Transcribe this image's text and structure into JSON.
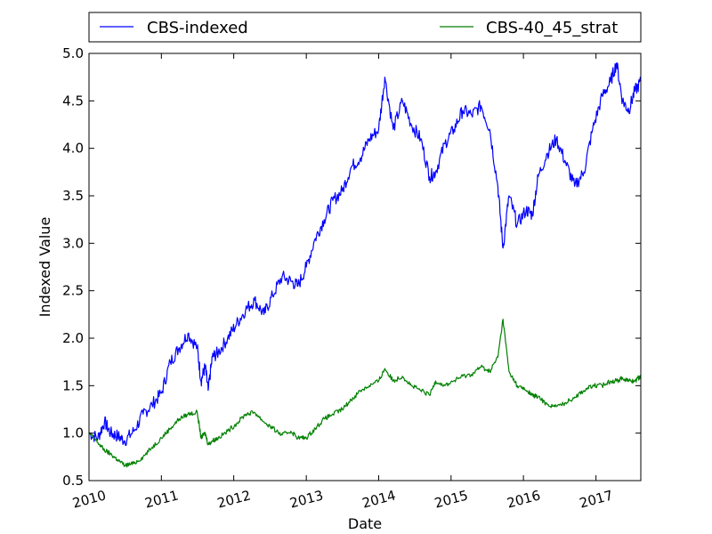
{
  "chart_data": {
    "type": "line",
    "xlabel": "Date",
    "ylabel": "Indexed Value",
    "ylim": [
      0.5,
      5.0
    ],
    "xlim": [
      "2010-01-01",
      "2017-08-15"
    ],
    "yticks": [
      "0.5",
      "1.0",
      "1.5",
      "2.0",
      "2.5",
      "3.0",
      "3.5",
      "4.0",
      "4.5",
      "5.0"
    ],
    "xticks": [
      "2010",
      "2011",
      "2012",
      "2013",
      "2014",
      "2015",
      "2016",
      "2017"
    ],
    "legend_placement": "top, above plot, two columns",
    "grid": false,
    "series": [
      {
        "name": "CBS-indexed",
        "color": "#0000ff",
        "x": [
          "2010-01-01",
          "2010-02-15",
          "2010-03-20",
          "2010-04-20",
          "2010-05-25",
          "2010-06-30",
          "2010-08-15",
          "2010-10-01",
          "2010-11-15",
          "2011-01-01",
          "2011-02-15",
          "2011-04-01",
          "2011-05-15",
          "2011-07-01",
          "2011-07-20",
          "2011-08-10",
          "2011-08-25",
          "2011-09-15",
          "2011-10-15",
          "2011-12-01",
          "2012-01-15",
          "2012-03-01",
          "2012-04-15",
          "2012-06-01",
          "2012-07-15",
          "2012-09-01",
          "2012-10-15",
          "2012-11-20",
          "2013-01-01",
          "2013-02-15",
          "2013-04-01",
          "2013-05-15",
          "2013-07-01",
          "2013-08-15",
          "2013-10-01",
          "2013-11-15",
          "2014-01-01",
          "2014-02-01",
          "2014-03-15",
          "2014-05-01",
          "2014-06-15",
          "2014-08-01",
          "2014-09-15",
          "2014-10-15",
          "2014-12-01",
          "2015-01-15",
          "2015-03-01",
          "2015-04-15",
          "2015-06-01",
          "2015-07-15",
          "2015-08-25",
          "2015-09-20",
          "2015-10-20",
          "2015-12-01",
          "2016-01-15",
          "2016-02-15",
          "2016-03-15",
          "2016-05-01",
          "2016-06-15",
          "2016-08-01",
          "2016-09-15",
          "2016-11-01",
          "2016-12-15",
          "2017-02-01",
          "2017-03-15",
          "2017-04-15",
          "2017-05-15",
          "2017-06-15",
          "2017-07-15",
          "2017-08-15"
        ],
        "y": [
          1.0,
          0.95,
          1.12,
          1.0,
          0.97,
          0.92,
          1.02,
          1.2,
          1.3,
          1.42,
          1.75,
          1.9,
          2.05,
          1.9,
          1.55,
          1.7,
          1.45,
          1.8,
          1.85,
          2.0,
          2.15,
          2.3,
          2.4,
          2.25,
          2.45,
          2.65,
          2.6,
          2.55,
          2.75,
          3.05,
          3.25,
          3.45,
          3.55,
          3.8,
          3.9,
          4.1,
          4.2,
          4.75,
          4.2,
          4.5,
          4.25,
          4.1,
          3.7,
          3.75,
          4.05,
          4.2,
          4.4,
          4.35,
          4.45,
          4.2,
          3.6,
          2.95,
          3.5,
          3.2,
          3.35,
          3.3,
          3.7,
          3.95,
          4.1,
          3.85,
          3.6,
          3.75,
          4.2,
          4.55,
          4.7,
          4.9,
          4.5,
          4.4,
          4.6,
          4.7
        ]
      },
      {
        "name": "CBS-40_45_strat",
        "color": "#008000",
        "x": [
          "2010-01-01",
          "2010-02-15",
          "2010-03-20",
          "2010-04-20",
          "2010-05-25",
          "2010-06-30",
          "2010-08-15",
          "2010-10-01",
          "2010-11-15",
          "2011-01-01",
          "2011-02-15",
          "2011-04-01",
          "2011-05-15",
          "2011-07-01",
          "2011-07-20",
          "2011-08-10",
          "2011-08-25",
          "2011-09-15",
          "2011-10-15",
          "2011-12-01",
          "2012-01-15",
          "2012-03-01",
          "2012-04-15",
          "2012-06-01",
          "2012-07-15",
          "2012-09-01",
          "2012-10-15",
          "2012-11-20",
          "2013-01-01",
          "2013-02-15",
          "2013-04-01",
          "2013-05-15",
          "2013-07-01",
          "2013-08-15",
          "2013-10-01",
          "2013-11-15",
          "2014-01-01",
          "2014-02-01",
          "2014-03-15",
          "2014-05-01",
          "2014-06-15",
          "2014-08-01",
          "2014-09-15",
          "2014-10-15",
          "2014-12-01",
          "2015-01-15",
          "2015-03-01",
          "2015-04-15",
          "2015-06-01",
          "2015-07-15",
          "2015-08-25",
          "2015-09-20",
          "2015-10-20",
          "2015-12-01",
          "2016-01-15",
          "2016-02-15",
          "2016-03-15",
          "2016-05-01",
          "2016-06-15",
          "2016-08-01",
          "2016-09-15",
          "2016-11-01",
          "2016-12-15",
          "2017-02-01",
          "2017-03-15",
          "2017-04-15",
          "2017-05-15",
          "2017-06-15",
          "2017-07-15",
          "2017-08-15"
        ],
        "y": [
          1.0,
          0.9,
          0.82,
          0.78,
          0.72,
          0.66,
          0.68,
          0.75,
          0.85,
          0.95,
          1.05,
          1.15,
          1.2,
          1.22,
          0.95,
          1.0,
          0.88,
          0.92,
          0.95,
          1.02,
          1.1,
          1.2,
          1.22,
          1.12,
          1.05,
          0.98,
          1.02,
          0.95,
          0.95,
          1.05,
          1.15,
          1.2,
          1.25,
          1.35,
          1.45,
          1.5,
          1.55,
          1.68,
          1.55,
          1.6,
          1.5,
          1.45,
          1.4,
          1.55,
          1.5,
          1.55,
          1.6,
          1.62,
          1.7,
          1.65,
          1.8,
          2.2,
          1.65,
          1.5,
          1.45,
          1.4,
          1.38,
          1.3,
          1.28,
          1.32,
          1.38,
          1.45,
          1.5,
          1.5,
          1.55,
          1.55,
          1.58,
          1.55,
          1.55,
          1.6
        ]
      }
    ]
  }
}
